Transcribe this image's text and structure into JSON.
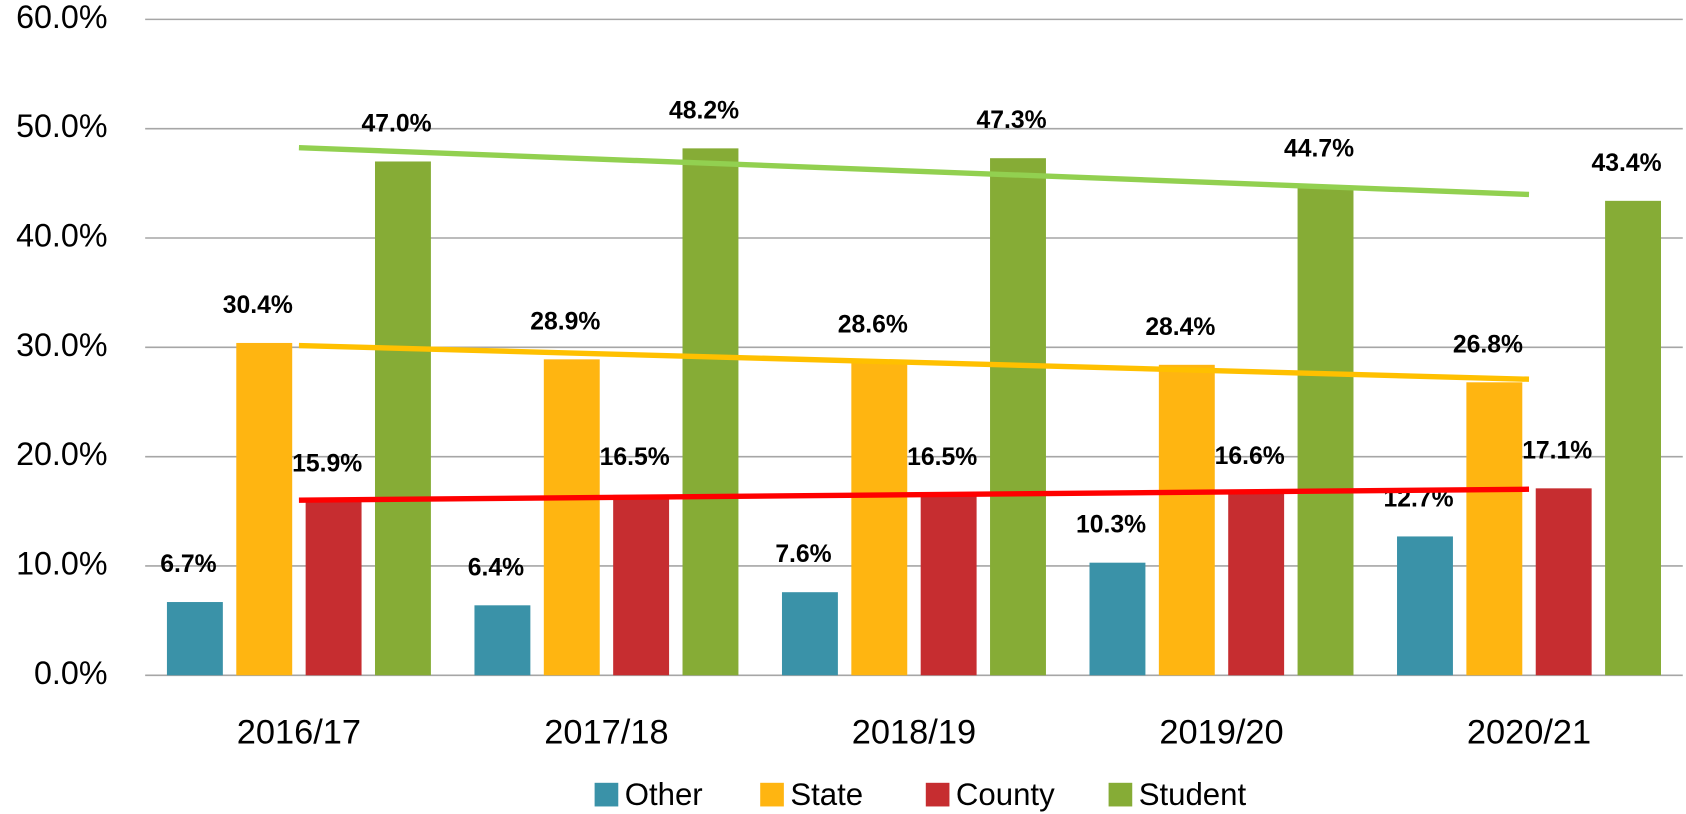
{
  "chart_data": {
    "type": "bar",
    "categories": [
      "2016/17",
      "2017/18",
      "2018/19",
      "2019/20",
      "2020/21"
    ],
    "series": [
      {
        "name": "Other",
        "color": "#3a92a8",
        "values": [
          6.7,
          6.4,
          7.6,
          10.3,
          12.7
        ],
        "value_labels": [
          "6.7%",
          "6.4%",
          "7.6%",
          "10.3%",
          "12.7%"
        ]
      },
      {
        "name": "State",
        "color": "#ffb511",
        "values": [
          30.4,
          28.9,
          28.6,
          28.4,
          26.8
        ],
        "value_labels": [
          "30.4%",
          "28.9%",
          "28.6%",
          "28.4%",
          "26.8%"
        ],
        "trendline_color": "#ffc000"
      },
      {
        "name": "County",
        "color": "#c62d30",
        "values": [
          15.9,
          16.5,
          16.5,
          16.6,
          17.1
        ],
        "value_labels": [
          "15.9%",
          "16.5%",
          "16.5%",
          "16.6%",
          "17.1%"
        ],
        "trendline_color": "#ff0000"
      },
      {
        "name": "Student",
        "color": "#86ac36",
        "values": [
          47.0,
          48.2,
          47.3,
          44.7,
          43.4
        ],
        "value_labels": [
          "47.0%",
          "48.2%",
          "47.3%",
          "44.7%",
          "43.4%"
        ],
        "trendline_color": "#92d050"
      }
    ],
    "ylim": [
      0,
      60
    ],
    "yticks": [
      {
        "value": 0,
        "label": "0.0%"
      },
      {
        "value": 10,
        "label": "10.0%"
      },
      {
        "value": 20,
        "label": "20.0%"
      },
      {
        "value": 30,
        "label": "30.0%"
      },
      {
        "value": 40,
        "label": "40.0%"
      },
      {
        "value": 50,
        "label": "50.0%"
      },
      {
        "value": 60,
        "label": "60.0%"
      }
    ],
    "grid": true,
    "trendline": true,
    "legend": "bottom"
  }
}
